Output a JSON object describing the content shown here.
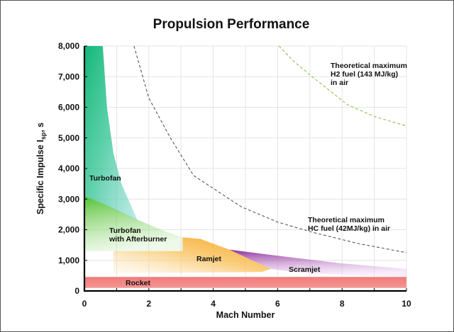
{
  "chart_data": {
    "type": "area",
    "title": "Propulsion Performance",
    "xlabel": "Mach Number",
    "ylabel": "Specific Impulse I",
    "ylabel_sub": "sp",
    "ylabel_unit": ", s",
    "xlim": [
      0,
      10
    ],
    "ylim": [
      0,
      8000
    ],
    "xticks": [
      "0",
      "2",
      "4",
      "6",
      "8",
      "10"
    ],
    "yticks": [
      "0",
      "1,000",
      "2,000",
      "3,000",
      "4,000",
      "5,000",
      "6,000",
      "7,000",
      "8,000"
    ],
    "grid": true,
    "regions": [
      {
        "name": "Rocket",
        "color": "#f07a78",
        "polygon": [
          [
            0,
            100
          ],
          [
            10,
            100
          ],
          [
            10,
            455
          ],
          [
            0,
            455
          ]
        ]
      },
      {
        "name": "Ramjet",
        "color": "#f7a81c",
        "polygon": [
          [
            0.9,
            1300
          ],
          [
            3.05,
            1300
          ],
          [
            3.05,
            1750
          ],
          [
            3.6,
            1700
          ],
          [
            4.5,
            1350
          ],
          [
            5.2,
            1000
          ],
          [
            5.8,
            720
          ],
          [
            5.5,
            620
          ],
          [
            0.9,
            580
          ]
        ]
      },
      {
        "name": "Scramjet",
        "color": "#9b3aa3",
        "polygon": [
          [
            4.5,
            1350
          ],
          [
            6,
            1150
          ],
          [
            8,
            900
          ],
          [
            10,
            720
          ],
          [
            10,
            450
          ],
          [
            8,
            520
          ],
          [
            6.5,
            620
          ],
          [
            5.8,
            720
          ],
          [
            5.2,
            1000
          ]
        ]
      },
      {
        "name": "Turbofan with Afterburner",
        "color": "#5cc83c",
        "polygon": [
          [
            0,
            3100
          ],
          [
            0.6,
            2850
          ],
          [
            1.2,
            2550
          ],
          [
            1.7,
            2300
          ],
          [
            2.5,
            1950
          ],
          [
            3.05,
            1750
          ],
          [
            3.05,
            1300
          ],
          [
            0,
            1300
          ]
        ]
      },
      {
        "name": "Turbofan",
        "color": "#1fc08a",
        "polygon": [
          [
            0,
            8000
          ],
          [
            0.57,
            8000
          ],
          [
            0.7,
            6000
          ],
          [
            0.9,
            4500
          ],
          [
            1.15,
            3500
          ],
          [
            1.65,
            2300
          ],
          [
            0.6,
            2850
          ],
          [
            0,
            3100
          ]
        ]
      }
    ],
    "series": [
      {
        "name": "Theoretical maximum HC fuel (42MJ/kg) in air",
        "style": "dashed",
        "color": "#555566",
        "x": [
          1.54,
          2.0,
          2.67,
          3.39,
          4.87,
          6.0,
          7.07,
          8.5,
          10.0
        ],
        "y": [
          8000,
          6300,
          5000,
          3770,
          2750,
          2250,
          1920,
          1550,
          1250
        ]
      },
      {
        "name": "Theoretical maximum H2 fuel (143 MJ/kg) in air",
        "style": "dashed",
        "color": "#8cc050",
        "x": [
          6.04,
          6.5,
          7.07,
          8.17,
          9.0,
          10.0
        ],
        "y": [
          8000,
          7500,
          7000,
          6080,
          5700,
          5390
        ]
      }
    ],
    "labels": {
      "turbofan": "Turbofan",
      "afterburner_1": "Turbofan",
      "afterburner_2": "with Afterburner",
      "ramjet": "Ramjet",
      "scramjet": "Scramjet",
      "rocket": "Rocket",
      "h2_1": "Theoretical maximum",
      "h2_2": "H2 fuel (143 MJ/kg)",
      "h2_3": "in air",
      "hc_1": "Theoretical maximum",
      "hc_2": "HC fuel (42MJ/kg) in air"
    }
  }
}
